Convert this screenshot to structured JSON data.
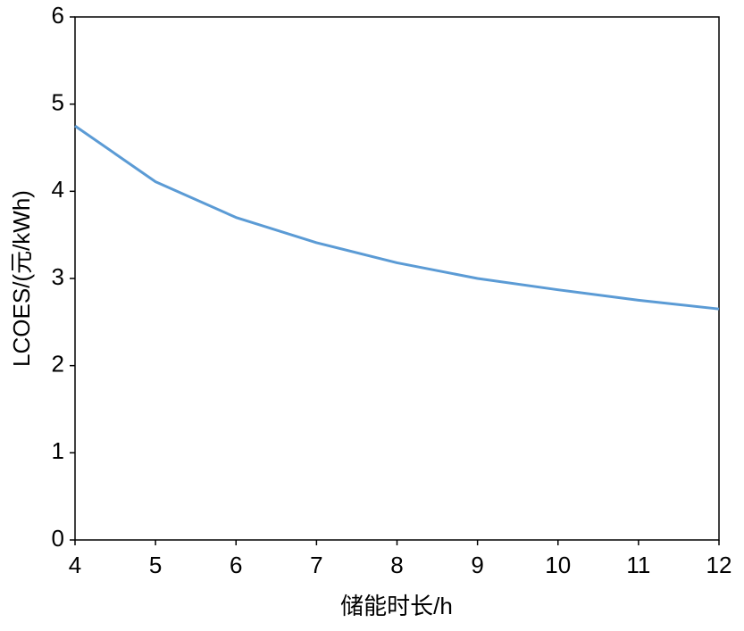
{
  "chart_data": {
    "type": "line",
    "x_label": "储能时长/h",
    "y_label": "LCOES/(元/kWh)",
    "series": [
      {
        "name": "LCOES",
        "color": "#5b9bd5",
        "x": [
          4,
          4.5,
          5,
          6,
          7,
          8,
          9,
          10,
          11,
          12
        ],
        "values": [
          4.75,
          4.43,
          4.11,
          3.7,
          3.41,
          3.18,
          3.0,
          2.87,
          2.75,
          2.65
        ]
      }
    ],
    "xlim": [
      4,
      12
    ],
    "xticks": [
      4,
      5,
      6,
      7,
      8,
      9,
      10,
      11,
      12
    ],
    "ylim": [
      0,
      6
    ],
    "yticks": [
      0,
      1,
      2,
      3,
      4,
      5,
      6
    ],
    "grid": false
  }
}
